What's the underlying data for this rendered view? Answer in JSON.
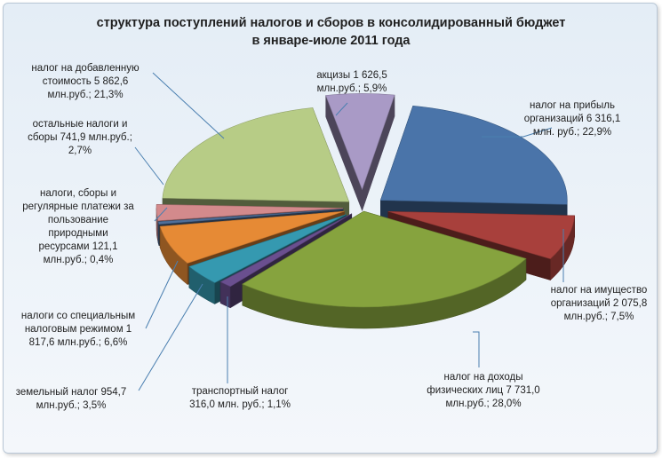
{
  "chart_data": {
    "type": "pie",
    "style": "3d-exploded",
    "title_lines": [
      "структура поступлений налогов и сборов в консолидированный бюджет",
      "в январе-июле 2011 года"
    ],
    "unit": "млн.руб.",
    "slices": [
      {
        "key": "profit",
        "value": 6316.1,
        "percent": 22.9,
        "color": "#4a74a9",
        "label_lines": [
          "налог на прибыль",
          "организаций 6 316,1",
          "млн. руб.; 22,9%"
        ]
      },
      {
        "key": "property",
        "value": 2075.8,
        "percent": 7.5,
        "color": "#a8403c",
        "label_lines": [
          "налог на имущество",
          "организаций 2 075,8",
          "млн.руб.; 7,5%"
        ]
      },
      {
        "key": "income",
        "value": 7731.0,
        "percent": 28.0,
        "color": "#86a33e",
        "label_lines": [
          "налог на доходы",
          "физических лиц 7 731,0",
          "млн.руб.; 28,0%"
        ]
      },
      {
        "key": "transport",
        "value": 316.0,
        "percent": 1.1,
        "color": "#6a4f8f",
        "label_lines": [
          "транспортный налог",
          "316,0 млн. руб.; 1,1%"
        ]
      },
      {
        "key": "land",
        "value": 954.7,
        "percent": 3.5,
        "color": "#3599b0",
        "label_lines": [
          "земельный налог 954,7",
          "млн.руб.; 3,5%"
        ]
      },
      {
        "key": "special",
        "value": 1817.6,
        "percent": 6.6,
        "color": "#e68a35",
        "label_lines": [
          "налоги со специальным",
          "налоговым режимом 1",
          "817,6 млн.руб.; 6,6%"
        ]
      },
      {
        "key": "natural",
        "value": 121.1,
        "percent": 0.4,
        "color": "#4f6f9a",
        "label_lines": [
          "налоги, сборы и",
          "регулярные платежи за",
          "пользование",
          "природными",
          "ресурсами 121,1",
          "млн.руб.; 0,4%"
        ]
      },
      {
        "key": "other",
        "value": 741.9,
        "percent": 2.7,
        "color": "#d38a8c",
        "label_lines": [
          "остальные налоги и",
          "сборы 741,9 млн.руб.;",
          "2,7%"
        ]
      },
      {
        "key": "vat",
        "value": 5862.6,
        "percent": 21.3,
        "color": "#b7cc86",
        "label_lines": [
          "налог на добавленную",
          "стоимость 5 862,6",
          "млн.руб.; 21,3%"
        ]
      },
      {
        "key": "excise",
        "value": 1626.5,
        "percent": 5.9,
        "color": "#a99ac6",
        "label_lines": [
          "акцизы 1 626,5",
          "млн.руб.; 5,9%"
        ]
      }
    ]
  }
}
